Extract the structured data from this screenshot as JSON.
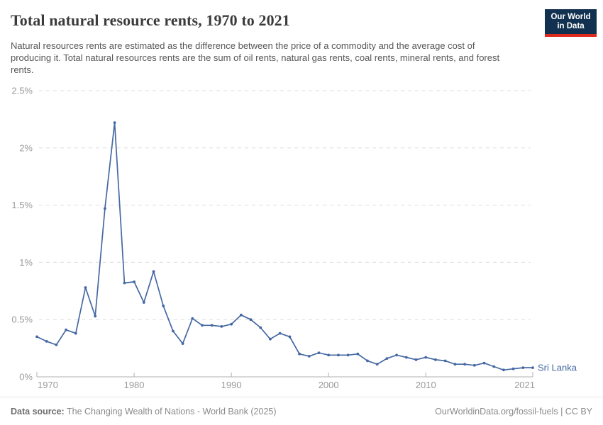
{
  "header": {
    "title": "Total natural resource rents, 1970 to 2021",
    "subtitle": "Natural resources rents are estimated as the difference between the price of a commodity and the average cost of producing it. Total natural resources rents are the sum of oil rents, natural gas rents, coal rents, mineral rents, and forest rents."
  },
  "logo": {
    "line1": "Our World",
    "line2": "in Data",
    "bg_color": "#12304f",
    "bar_color": "#dd2a1c"
  },
  "chart_data": {
    "type": "line",
    "title": "Total natural resource rents, 1970 to 2021",
    "xlabel": "",
    "ylabel": "",
    "unit": "%",
    "xlim": [
      1970,
      2021
    ],
    "ylim": [
      0,
      2.5
    ],
    "grid": "horizontal-dashed",
    "legend_position": "end-of-line",
    "entity_label": "Sri Lanka",
    "x_ticks": [
      {
        "value": 1970,
        "label": "1970"
      },
      {
        "value": 1980,
        "label": "1980"
      },
      {
        "value": 1990,
        "label": "1990"
      },
      {
        "value": 2000,
        "label": "2000"
      },
      {
        "value": 2010,
        "label": "2010"
      },
      {
        "value": 2021,
        "label": "2021"
      }
    ],
    "y_ticks": [
      {
        "value": 0,
        "label": "0%"
      },
      {
        "value": 0.5,
        "label": "0.5%"
      },
      {
        "value": 1,
        "label": "1%"
      },
      {
        "value": 1.5,
        "label": "1.5%"
      },
      {
        "value": 2,
        "label": "2%"
      },
      {
        "value": 2.5,
        "label": "2.5%"
      }
    ],
    "series": [
      {
        "name": "Sri Lanka",
        "color": "#4568a2",
        "years": [
          1970,
          1971,
          1972,
          1973,
          1974,
          1975,
          1976,
          1977,
          1978,
          1979,
          1980,
          1981,
          1982,
          1983,
          1984,
          1985,
          1986,
          1987,
          1988,
          1989,
          1990,
          1991,
          1992,
          1993,
          1994,
          1995,
          1996,
          1997,
          1998,
          1999,
          2000,
          2001,
          2002,
          2003,
          2004,
          2005,
          2006,
          2007,
          2008,
          2009,
          2010,
          2011,
          2012,
          2013,
          2014,
          2015,
          2016,
          2017,
          2018,
          2019,
          2020,
          2021
        ],
        "values": [
          0.35,
          0.31,
          0.28,
          0.41,
          0.38,
          0.78,
          0.53,
          1.47,
          2.22,
          0.82,
          0.83,
          0.65,
          0.92,
          0.62,
          0.4,
          0.29,
          0.51,
          0.45,
          0.45,
          0.44,
          0.46,
          0.54,
          0.5,
          0.43,
          0.33,
          0.38,
          0.35,
          0.2,
          0.18,
          0.21,
          0.19,
          0.19,
          0.19,
          0.2,
          0.14,
          0.11,
          0.16,
          0.19,
          0.17,
          0.15,
          0.17,
          0.15,
          0.14,
          0.11,
          0.11,
          0.1,
          0.12,
          0.09,
          0.06,
          0.07,
          0.08,
          0.08
        ]
      }
    ],
    "colors": {
      "line": "#4568a2",
      "gridline": "#dedede",
      "axis": "#b0b0b0",
      "tick_label": "#9a9a9a"
    }
  },
  "footer": {
    "source_label": "Data source:",
    "source_text": " The Changing Wealth of Nations - World Bank (2025)",
    "right_text": "OurWorldinData.org/fossil-fuels | CC BY"
  }
}
